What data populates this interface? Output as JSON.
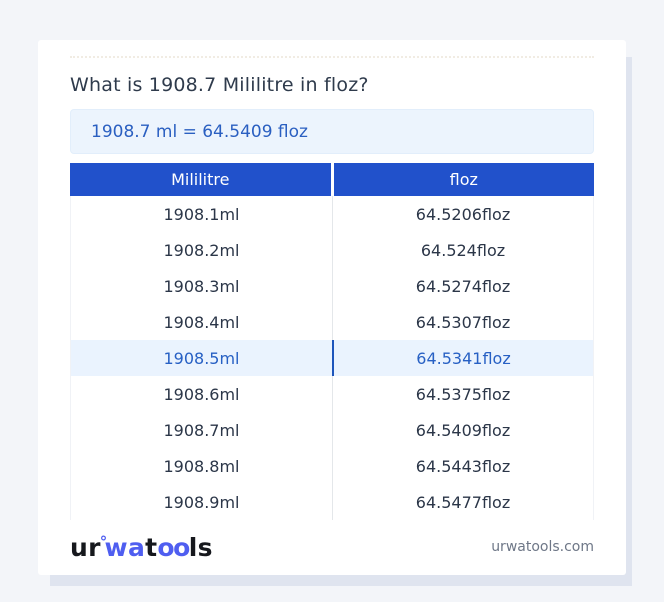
{
  "title": "What is 1908.7 Mililitre in floz?",
  "result_box": {
    "text": "1908.7 ml = 64.5409 floz"
  },
  "table": {
    "headers": [
      "Mililitre",
      "floz"
    ],
    "rows": [
      {
        "ml": "1908.1ml",
        "floz": "64.5206floz"
      },
      {
        "ml": "1908.2ml",
        "floz": "64.524floz"
      },
      {
        "ml": "1908.3ml",
        "floz": "64.5274floz"
      },
      {
        "ml": "1908.4ml",
        "floz": "64.5307floz"
      },
      {
        "ml": "1908.5ml",
        "floz": "64.5341floz"
      },
      {
        "ml": "1908.6ml",
        "floz": "64.5375floz"
      },
      {
        "ml": "1908.7ml",
        "floz": "64.5409floz"
      },
      {
        "ml": "1908.8ml",
        "floz": "64.5443floz"
      },
      {
        "ml": "1908.9ml",
        "floz": "64.5477floz"
      }
    ],
    "highlighted_row_index": 4
  },
  "footer": {
    "logo": {
      "seg1": "ur",
      "ring": "°",
      "seg2": "wa",
      "seg3": "t",
      "seg4": "oo",
      "seg5": "ls"
    },
    "website": "urwatools.com"
  },
  "colors": {
    "header_blue": "#2151cb",
    "link_blue": "#2a5fc1",
    "highlight_bg": "#eaf3fe",
    "highlight_divider": "#1d55bb",
    "result_bg": "#ecf4fd",
    "page_bg": "#f3f5f9",
    "logo_blue": "#4f5ef0",
    "text_dark": "#2b3648"
  }
}
